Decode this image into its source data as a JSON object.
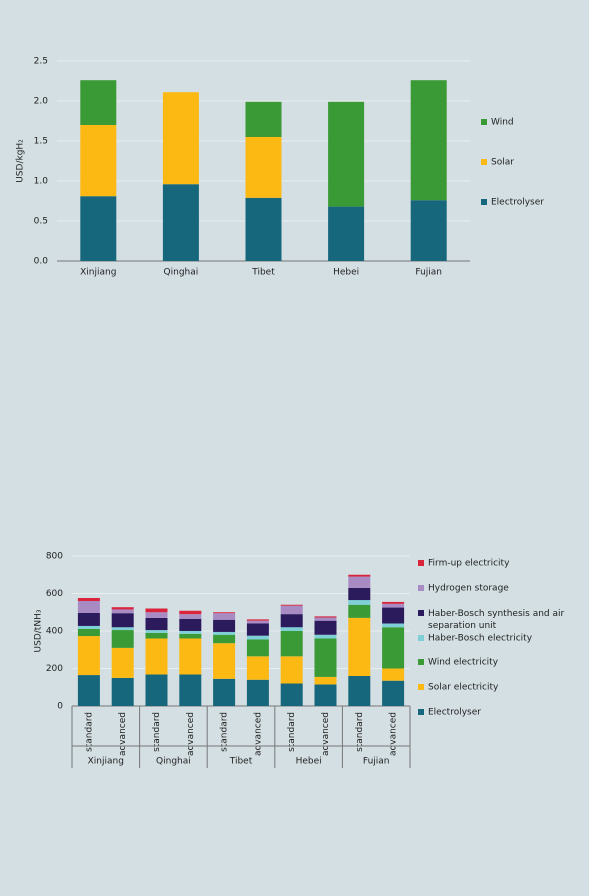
{
  "chart_data": [
    {
      "type": "bar",
      "stacked": true,
      "y_label": "USD/kgH₂",
      "categories": [
        "Xinjiang",
        "Qinghai",
        "Tibet",
        "Hebei",
        "Fujian"
      ],
      "series": [
        {
          "name": "Electrolyser",
          "color": "#17677c",
          "values": [
            0.81,
            0.96,
            0.79,
            0.68,
            0.76
          ]
        },
        {
          "name": "Solar",
          "color": "#fdb913",
          "values": [
            0.89,
            1.15,
            0.76,
            0,
            0
          ]
        },
        {
          "name": "Wind",
          "color": "#3a9a35",
          "values": [
            0.56,
            0,
            0.44,
            1.31,
            1.5
          ]
        }
      ],
      "ylim": [
        0,
        2.5
      ],
      "yticks": [
        {
          "value": 0,
          "label": "0.0"
        },
        {
          "value": 0.5,
          "label": "0.5"
        },
        {
          "value": 1,
          "label": "1.0"
        },
        {
          "value": 1.5,
          "label": "1.5"
        },
        {
          "value": 2,
          "label": "2.0"
        },
        {
          "value": 2.5,
          "label": "2.5"
        }
      ],
      "grid": true,
      "legend": "right"
    },
    {
      "type": "bar",
      "stacked": true,
      "y_label": "USD/tNH₃",
      "categories": [
        "standard",
        "advanced",
        "standard",
        "advanced",
        "standard",
        "advanced",
        "standard",
        "advanced",
        "standard",
        "advanced"
      ],
      "groups": [
        "Xinjiang",
        "Qinghai",
        "Tibet",
        "Hebei",
        "Fujian"
      ],
      "series": [
        {
          "name": "Electrolyser",
          "color": "#17677c",
          "values": [
            165,
            150,
            168,
            168,
            145,
            140,
            120,
            115,
            160,
            135
          ]
        },
        {
          "name": "Solar electricity",
          "color": "#fdb913",
          "values": [
            208,
            160,
            192,
            192,
            190,
            125,
            145,
            40,
            310,
            65
          ]
        },
        {
          "name": "Wind electricity",
          "color": "#3a9a35",
          "values": [
            38,
            95,
            30,
            25,
            45,
            90,
            135,
            205,
            70,
            220
          ]
        },
        {
          "name": "Haber-Bosch electricity",
          "color": "#7fd0d6",
          "values": [
            16,
            15,
            15,
            15,
            15,
            20,
            20,
            20,
            25,
            20
          ]
        },
        {
          "name": "Haber-Bosch synthesis and air separation unit",
          "color": "#2b1a5c",
          "values": [
            69,
            75,
            65,
            65,
            65,
            65,
            70,
            75,
            65,
            85
          ]
        },
        {
          "name": "Hydrogen storage",
          "color": "#a98bc4",
          "values": [
            64,
            20,
            30,
            25,
            35,
            15,
            45,
            17,
            60,
            20
          ]
        },
        {
          "name": "Firm-up electricity",
          "color": "#d9243c",
          "values": [
            16,
            12,
            20,
            18,
            5,
            7,
            5,
            6,
            10,
            10
          ]
        }
      ],
      "ylim": [
        0,
        800
      ],
      "yticks": [
        0,
        200,
        400,
        600,
        800
      ],
      "grid": true,
      "legend": "right"
    }
  ]
}
